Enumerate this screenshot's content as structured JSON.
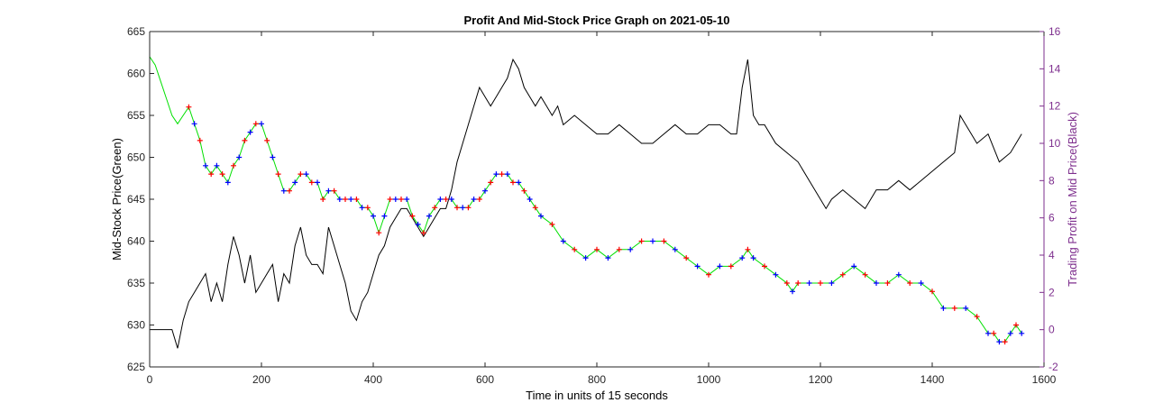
{
  "chart_data": {
    "type": "line",
    "title": "Profit And Mid-Stock Price Graph on 2021-05-10",
    "xlabel": "Time in units of 15 seconds",
    "ylabel_left": "Mid-Stock Price(Green)",
    "ylabel_right": "Trading Profit on Mid Price(Black)",
    "xlim": [
      0,
      1600
    ],
    "ylim_left": [
      625,
      665
    ],
    "ylim_right": [
      -2,
      16
    ],
    "x_ticks": [
      "0",
      "200",
      "400",
      "600",
      "800",
      "1000",
      "1200",
      "1400",
      "1600"
    ],
    "y_left_ticks": [
      "625",
      "630",
      "635",
      "640",
      "645",
      "650",
      "655",
      "660",
      "665"
    ],
    "y_right_ticks": [
      "-2",
      "0",
      "2",
      "4",
      "6",
      "8",
      "10",
      "12",
      "14",
      "16"
    ],
    "grid": false,
    "colors": {
      "price": "#00e000",
      "profit": "#000000",
      "buy_marker": "#0000ff",
      "sell_marker": "#ff0000",
      "right_axis": "#7e2f8e",
      "left_axis": "#262626"
    },
    "series": [
      {
        "axis": "left",
        "color": "#00e000",
        "x": [
          0,
          10,
          20,
          30,
          40,
          50,
          60,
          70,
          80,
          90,
          100,
          110,
          120,
          130,
          140,
          150,
          160,
          170,
          180,
          190,
          200,
          210,
          220,
          230,
          240,
          250,
          260,
          270,
          280,
          290,
          300,
          310,
          320,
          330,
          340,
          350,
          360,
          370,
          380,
          390,
          400,
          410,
          420,
          430,
          440,
          450,
          460,
          470,
          480,
          490,
          500,
          510,
          520,
          530,
          540,
          550,
          560,
          570,
          580,
          590,
          600,
          610,
          620,
          630,
          640,
          650,
          660,
          670,
          680,
          690,
          700,
          720,
          740,
          760,
          780,
          800,
          820,
          840,
          860,
          880,
          900,
          920,
          940,
          960,
          980,
          1000,
          1020,
          1040,
          1060,
          1070,
          1080,
          1100,
          1120,
          1140,
          1150,
          1160,
          1180,
          1200,
          1220,
          1240,
          1260,
          1280,
          1300,
          1320,
          1340,
          1360,
          1380,
          1400,
          1420,
          1440,
          1460,
          1480,
          1500,
          1510,
          1520,
          1530,
          1540,
          1550,
          1560
        ],
        "y": [
          662,
          661,
          659,
          657,
          655,
          654,
          655,
          656,
          654,
          652,
          649,
          648,
          649,
          648,
          647,
          649,
          650,
          652,
          653,
          654,
          654,
          652,
          650,
          648,
          646,
          646,
          647,
          648,
          648,
          647,
          647,
          645,
          646,
          646,
          645,
          645,
          645,
          645,
          644,
          644,
          643,
          641,
          643,
          645,
          645,
          645,
          645,
          643,
          642,
          641,
          643,
          644,
          645,
          645,
          645,
          644,
          644,
          644,
          645,
          645,
          646,
          647,
          648,
          648,
          648,
          647,
          647,
          646,
          645,
          644,
          643,
          642,
          640,
          639,
          638,
          639,
          638,
          639,
          639,
          640,
          640,
          640,
          639,
          638,
          637,
          636,
          637,
          637,
          638,
          639,
          638,
          637,
          636,
          635,
          634,
          635,
          635,
          635,
          635,
          636,
          637,
          636,
          635,
          635,
          636,
          635,
          635,
          634,
          632,
          632,
          632,
          631,
          629,
          629,
          628,
          628,
          629,
          630,
          629
        ]
      },
      {
        "axis": "right",
        "color": "#000000",
        "x": [
          0,
          20,
          40,
          50,
          60,
          70,
          80,
          90,
          100,
          110,
          120,
          130,
          140,
          150,
          160,
          170,
          180,
          190,
          200,
          210,
          220,
          230,
          240,
          250,
          260,
          270,
          280,
          290,
          300,
          310,
          320,
          330,
          340,
          350,
          360,
          370,
          380,
          390,
          400,
          410,
          420,
          430,
          440,
          450,
          460,
          470,
          480,
          490,
          500,
          510,
          520,
          530,
          540,
          550,
          560,
          570,
          580,
          590,
          600,
          610,
          620,
          630,
          640,
          650,
          660,
          670,
          680,
          690,
          700,
          710,
          720,
          730,
          740,
          760,
          780,
          800,
          820,
          840,
          860,
          880,
          900,
          920,
          940,
          960,
          980,
          1000,
          1020,
          1040,
          1050,
          1060,
          1070,
          1080,
          1090,
          1100,
          1120,
          1140,
          1160,
          1180,
          1200,
          1210,
          1220,
          1240,
          1260,
          1280,
          1300,
          1320,
          1340,
          1360,
          1380,
          1400,
          1420,
          1440,
          1450,
          1460,
          1480,
          1500,
          1520,
          1540,
          1550,
          1560
        ],
        "y": [
          0,
          0,
          0,
          -1,
          0.5,
          1.5,
          2,
          2.5,
          3,
          1.5,
          2.5,
          1.5,
          3.5,
          5,
          4,
          2.5,
          4,
          2,
          2.5,
          3,
          3.5,
          1.5,
          3,
          2.5,
          4.5,
          5.5,
          4,
          3.5,
          3.5,
          3,
          5.5,
          4.5,
          3.5,
          2.5,
          1,
          0.5,
          1.5,
          2,
          3,
          4,
          4.5,
          5.5,
          6,
          6.5,
          6.5,
          6,
          5.5,
          5,
          5.5,
          6,
          6.5,
          6.5,
          7.5,
          9,
          10,
          11,
          12,
          13,
          12.5,
          12,
          12.5,
          13,
          13.5,
          14.5,
          14,
          13,
          12.5,
          12,
          12.5,
          12,
          11.5,
          12,
          11,
          11.5,
          11,
          10.5,
          10.5,
          11,
          10.5,
          10,
          10,
          10.5,
          11,
          10.5,
          10.5,
          11,
          11,
          10.5,
          10.5,
          13,
          14.5,
          11.5,
          11,
          11,
          10,
          9.5,
          9,
          8,
          7,
          6.5,
          7,
          7.5,
          7,
          6.5,
          7.5,
          7.5,
          8,
          7.5,
          8,
          8.5,
          9,
          9.5,
          11.5,
          11,
          10,
          10.5,
          9,
          9.5,
          10,
          10.5
        ]
      }
    ]
  }
}
